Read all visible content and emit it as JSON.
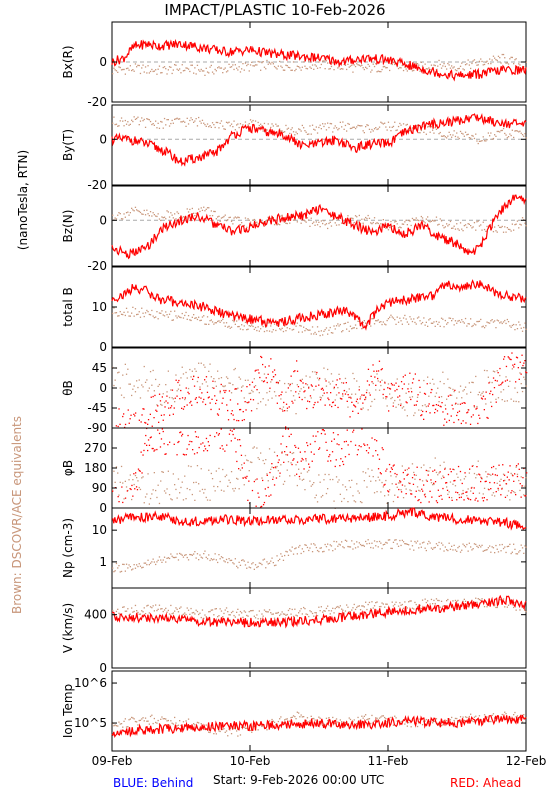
{
  "title": "IMPACT/PLASTIC   10-Feb-2026",
  "left_label": "(nanoTesla, RTN)",
  "side_label": "Brown: DSCOVR/ACE equivalents",
  "footer": {
    "blue": "BLUE: Behind",
    "start": "Start:  9-Feb-2026 00:00 UTC",
    "red": "RED: Ahead"
  },
  "colors": {
    "ahead": "#ff0000",
    "dscovr": "#c8967a",
    "behind": "#0000ff",
    "axis": "#000000",
    "zero_line": "#aaaaaa"
  },
  "x_axis": {
    "ticks": [
      "09-Feb",
      "10-Feb",
      "11-Feb",
      "12-Feb"
    ],
    "range_hours": [
      0,
      72
    ]
  },
  "chart_data": [
    {
      "type": "line",
      "ylabel": "Bx(R)",
      "yscale": "linear",
      "ylim": [
        -20,
        20
      ],
      "yticks": [
        {
          "v": 0,
          "t": "0"
        },
        {
          "v": -20,
          "t": "-20"
        }
      ],
      "zero_line": true,
      "series": [
        {
          "color": "ahead",
          "x": [
            0,
            2,
            4,
            6,
            8,
            12,
            16,
            20,
            24,
            28,
            32,
            36,
            40,
            44,
            48,
            52,
            56,
            60,
            64,
            68,
            72
          ],
          "y": [
            0,
            2,
            8,
            9,
            8,
            9,
            7,
            5,
            6,
            4,
            3,
            2,
            0,
            2,
            1,
            -2,
            -5,
            -7,
            -6,
            -4,
            -4
          ]
        },
        {
          "color": "dscovr",
          "x": [
            0,
            4,
            8,
            12,
            16,
            20,
            24,
            28,
            32,
            36,
            40,
            44,
            48,
            52,
            56,
            60,
            64,
            68,
            72
          ],
          "y": [
            -4,
            -3,
            -4,
            -3,
            -4,
            -3,
            -2,
            -1,
            -2,
            -1,
            -2,
            -3,
            -2,
            -3,
            -1,
            -2,
            0,
            2,
            -2
          ]
        }
      ]
    },
    {
      "type": "line",
      "ylabel": "By(T)",
      "yscale": "linear",
      "ylim": [
        -20,
        15
      ],
      "yticks": [
        {
          "v": 0,
          "t": "0"
        },
        {
          "v": -20,
          "t": "-20"
        }
      ],
      "zero_line": true,
      "series": [
        {
          "color": "ahead",
          "x": [
            0,
            3,
            6,
            9,
            12,
            15,
            18,
            21,
            24,
            27,
            30,
            33,
            36,
            39,
            42,
            45,
            48,
            51,
            54,
            57,
            60,
            63,
            66,
            69,
            72
          ],
          "y": [
            0,
            0,
            -2,
            -5,
            -10,
            -8,
            -6,
            2,
            5,
            3,
            2,
            -3,
            -2,
            0,
            -4,
            -2,
            -2,
            3,
            6,
            7,
            8,
            10,
            8,
            7,
            6
          ]
        },
        {
          "color": "dscovr",
          "x": [
            0,
            4,
            8,
            12,
            16,
            20,
            24,
            28,
            32,
            36,
            40,
            44,
            48,
            52,
            56,
            60,
            64,
            68,
            72
          ],
          "y": [
            8,
            8,
            7,
            8,
            8,
            6,
            7,
            5,
            4,
            5,
            6,
            5,
            6,
            5,
            4,
            2,
            0,
            3,
            2
          ]
        }
      ]
    },
    {
      "type": "line",
      "ylabel": "Bz(N)",
      "yscale": "linear",
      "ylim": [
        -20,
        15
      ],
      "yticks": [
        {
          "v": 0,
          "t": "0"
        },
        {
          "v": -20,
          "t": "-20"
        }
      ],
      "zero_line": true,
      "series": [
        {
          "color": "ahead",
          "x": [
            0,
            3,
            6,
            9,
            12,
            15,
            18,
            21,
            24,
            27,
            30,
            33,
            36,
            39,
            42,
            45,
            48,
            51,
            54,
            57,
            60,
            62,
            64,
            66,
            68,
            70,
            72
          ],
          "y": [
            -12,
            -15,
            -12,
            -3,
            0,
            2,
            -2,
            -5,
            -3,
            0,
            1,
            2,
            5,
            2,
            -2,
            -5,
            -3,
            -6,
            -2,
            -8,
            -10,
            -15,
            -12,
            -2,
            5,
            10,
            8
          ]
        },
        {
          "color": "dscovr",
          "x": [
            0,
            4,
            8,
            12,
            16,
            20,
            24,
            28,
            32,
            36,
            40,
            44,
            48,
            52,
            56,
            60,
            64,
            68,
            72
          ],
          "y": [
            2,
            4,
            2,
            3,
            5,
            0,
            -1,
            0,
            1,
            -2,
            0,
            1,
            -2,
            0,
            0,
            -3,
            -2,
            -4,
            0
          ]
        }
      ]
    },
    {
      "type": "line",
      "ylabel": "total B",
      "yscale": "linear",
      "ylim": [
        0,
        20
      ],
      "yticks": [
        {
          "v": 10,
          "t": "10"
        },
        {
          "v": 0,
          "t": "0"
        }
      ],
      "zero_line": false,
      "series": [
        {
          "color": "ahead",
          "x": [
            0,
            2,
            4,
            6,
            8,
            12,
            16,
            20,
            24,
            28,
            32,
            36,
            40,
            42,
            44,
            46,
            48,
            52,
            56,
            58,
            60,
            64,
            66,
            68,
            72
          ],
          "y": [
            12,
            13,
            15,
            14,
            12,
            11,
            10,
            8,
            7,
            6,
            7,
            8,
            9,
            8,
            5,
            9,
            11,
            12,
            13,
            16,
            15,
            16,
            14,
            13,
            12
          ]
        },
        {
          "color": "dscovr",
          "x": [
            0,
            4,
            8,
            12,
            16,
            20,
            24,
            28,
            32,
            36,
            40,
            44,
            48,
            52,
            56,
            60,
            64,
            68,
            72
          ],
          "y": [
            9,
            9,
            8,
            8,
            7,
            6,
            5,
            5,
            5,
            4,
            5,
            6,
            7,
            7,
            6,
            7,
            6,
            6,
            5
          ]
        }
      ]
    },
    {
      "type": "scatter",
      "ylabel": "θB",
      "yscale": "linear",
      "ylim": [
        -90,
        90
      ],
      "yticks": [
        {
          "v": 45,
          "t": "45"
        },
        {
          "v": 0,
          "t": "0"
        },
        {
          "v": -45,
          "t": "-45"
        },
        {
          "v": -90,
          "t": "-90"
        }
      ],
      "zero_line": false,
      "series": [
        {
          "color": "ahead",
          "x": [
            0,
            3,
            6,
            9,
            12,
            15,
            18,
            21,
            24,
            26,
            28,
            30,
            32,
            34,
            36,
            38,
            40,
            42,
            44,
            46,
            48,
            50,
            52,
            54,
            56,
            58,
            60,
            62,
            64,
            66,
            68,
            70,
            72
          ],
          "y": [
            -80,
            -85,
            -60,
            -30,
            -10,
            0,
            -20,
            -40,
            -30,
            60,
            20,
            -50,
            30,
            -30,
            10,
            -40,
            20,
            -60,
            0,
            40,
            -20,
            -10,
            10,
            -30,
            -20,
            -50,
            -40,
            -80,
            -60,
            -10,
            40,
            50,
            30
          ]
        },
        {
          "color": "dscovr",
          "x": [
            0,
            4,
            8,
            12,
            16,
            20,
            24,
            28,
            32,
            36,
            40,
            44,
            48,
            52,
            56,
            60,
            64,
            68,
            72
          ],
          "y": [
            10,
            20,
            0,
            10,
            30,
            20,
            -10,
            0,
            -20,
            10,
            0,
            -10,
            0,
            -30,
            10,
            -20,
            0,
            10,
            0
          ]
        }
      ]
    },
    {
      "type": "scatter",
      "ylabel": "φB",
      "yscale": "linear",
      "ylim": [
        0,
        360
      ],
      "yticks": [
        {
          "v": 270,
          "t": "270"
        },
        {
          "v": 180,
          "t": "180"
        },
        {
          "v": 90,
          "t": "90"
        },
        {
          "v": 0,
          "t": "0"
        }
      ],
      "zero_line": false,
      "series": [
        {
          "color": "ahead",
          "x": [
            0,
            3,
            6,
            9,
            12,
            15,
            18,
            21,
            24,
            27,
            30,
            33,
            36,
            39,
            42,
            45,
            48,
            52,
            56,
            60,
            64,
            68,
            72
          ],
          "y": [
            30,
            10,
            330,
            320,
            310,
            320,
            330,
            340,
            40,
            80,
            300,
            200,
            320,
            250,
            320,
            330,
            120,
            110,
            100,
            120,
            110,
            130,
            120
          ]
        },
        {
          "color": "dscovr",
          "x": [
            0,
            4,
            8,
            12,
            16,
            20,
            24,
            28,
            32,
            36,
            40,
            44,
            48,
            52,
            56,
            60,
            64,
            68,
            72
          ],
          "y": [
            120,
            100,
            90,
            110,
            120,
            100,
            200,
            190,
            180,
            90,
            60,
            110,
            90,
            130,
            150,
            110,
            140,
            110,
            120
          ]
        }
      ]
    },
    {
      "type": "line",
      "ylabel": "Np (cm-3)",
      "yscale": "log",
      "ylim": [
        0.15,
        50
      ],
      "yticks": [
        {
          "v": 10,
          "t": "10"
        },
        {
          "v": 1,
          "t": "1"
        }
      ],
      "zero_line": false,
      "series": [
        {
          "color": "ahead",
          "x": [
            0,
            4,
            8,
            12,
            16,
            20,
            24,
            28,
            32,
            36,
            40,
            44,
            48,
            52,
            54,
            56,
            60,
            64,
            68,
            72
          ],
          "y": [
            20,
            25,
            28,
            18,
            20,
            22,
            19,
            20,
            21,
            22,
            24,
            25,
            28,
            38,
            35,
            25,
            22,
            20,
            18,
            12
          ]
        },
        {
          "color": "dscovr",
          "x": [
            0,
            4,
            8,
            12,
            16,
            20,
            24,
            28,
            32,
            36,
            40,
            44,
            48,
            52,
            56,
            60,
            64,
            68,
            72
          ],
          "y": [
            0.7,
            0.6,
            1.2,
            1.5,
            1.8,
            1.0,
            0.8,
            1.0,
            2.5,
            3.0,
            3.5,
            4.0,
            3.8,
            3.5,
            3.2,
            3.0,
            3.0,
            2.8,
            2.5
          ]
        }
      ]
    },
    {
      "type": "line",
      "ylabel": "V (km/s)",
      "yscale": "linear",
      "ylim": [
        0,
        600
      ],
      "yticks": [
        {
          "v": 400,
          "t": "400"
        },
        {
          "v": 0,
          "t": "0"
        }
      ],
      "zero_line": false,
      "series": [
        {
          "color": "ahead",
          "x": [
            0,
            4,
            8,
            12,
            16,
            20,
            24,
            28,
            32,
            36,
            40,
            44,
            48,
            52,
            56,
            60,
            64,
            68,
            72
          ],
          "y": [
            390,
            380,
            370,
            360,
            350,
            345,
            340,
            340,
            350,
            360,
            380,
            400,
            420,
            440,
            450,
            460,
            480,
            510,
            480
          ]
        },
        {
          "color": "dscovr",
          "x": [
            0,
            4,
            8,
            12,
            16,
            20,
            24,
            28,
            32,
            36,
            40,
            44,
            48,
            52,
            56,
            60,
            64,
            68,
            72
          ],
          "y": [
            420,
            440,
            450,
            430,
            410,
            420,
            400,
            410,
            420,
            430,
            450,
            470,
            460,
            480,
            490,
            480,
            500,
            490,
            460
          ]
        }
      ]
    },
    {
      "type": "line",
      "ylabel": "Ion Temp",
      "yscale": "log",
      "ylim": [
        20000,
        2000000
      ],
      "yticks": [
        {
          "v": 1000000,
          "t": "10^6"
        },
        {
          "v": 100000,
          "t": "10^5"
        }
      ],
      "zero_line": false,
      "series": [
        {
          "color": "ahead",
          "x": [
            0,
            4,
            8,
            12,
            16,
            20,
            24,
            28,
            32,
            36,
            40,
            44,
            48,
            52,
            56,
            60,
            64,
            68,
            72
          ],
          "y": [
            60000,
            65000,
            70000,
            75000,
            80000,
            85000,
            85000,
            90000,
            95000,
            100000,
            95000,
            90000,
            100000,
            110000,
            105000,
            100000,
            110000,
            130000,
            120000
          ]
        },
        {
          "color": "dscovr",
          "x": [
            0,
            4,
            8,
            12,
            16,
            20,
            24,
            28,
            32,
            36,
            40,
            44,
            48,
            52,
            56,
            60,
            64,
            68,
            72
          ],
          "y": [
            90000,
            120000,
            130000,
            110000,
            80000,
            60000,
            70000,
            100000,
            150000,
            120000,
            110000,
            130000,
            120000,
            110000,
            100000,
            120000,
            140000,
            160000,
            130000
          ]
        }
      ]
    }
  ]
}
